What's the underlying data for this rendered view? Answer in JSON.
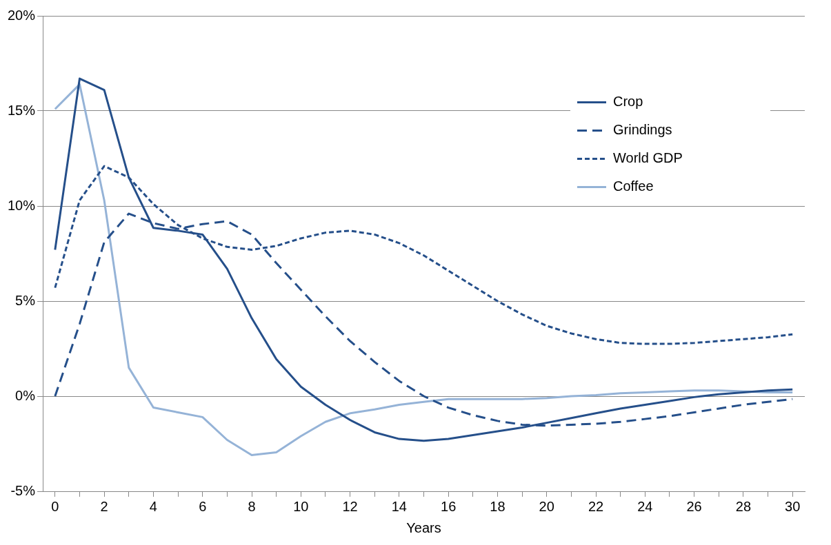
{
  "chart_data": {
    "type": "line",
    "xlabel": "Years",
    "x": [
      0,
      1,
      2,
      3,
      4,
      5,
      6,
      7,
      8,
      9,
      10,
      11,
      12,
      13,
      14,
      15,
      16,
      17,
      18,
      19,
      20,
      21,
      22,
      23,
      24,
      25,
      26,
      27,
      28,
      29,
      30
    ],
    "series": [
      {
        "name": "Crop",
        "color": "#254f8a",
        "line_style": "solid",
        "values": [
          7.7,
          16.7,
          16.1,
          11.5,
          8.85,
          8.7,
          8.5,
          6.7,
          4.1,
          1.95,
          0.5,
          -0.45,
          -1.25,
          -1.9,
          -2.25,
          -2.35,
          -2.25,
          -2.05,
          -1.85,
          -1.65,
          -1.4,
          -1.15,
          -0.9,
          -0.65,
          -0.45,
          -0.25,
          -0.05,
          0.1,
          0.2,
          0.3,
          0.35
        ]
      },
      {
        "name": "Grindings",
        "color": "#254f8a",
        "line_style": "dashed",
        "values": [
          0,
          3.8,
          8.1,
          9.6,
          9.1,
          8.8,
          9.05,
          9.2,
          8.5,
          7.0,
          5.6,
          4.2,
          2.9,
          1.8,
          0.8,
          0.0,
          -0.6,
          -1.0,
          -1.3,
          -1.5,
          -1.55,
          -1.5,
          -1.45,
          -1.35,
          -1.2,
          -1.05,
          -0.85,
          -0.65,
          -0.45,
          -0.3,
          -0.15
        ]
      },
      {
        "name": "World GDP",
        "color": "#254f8a",
        "line_style": "dotted",
        "values": [
          5.7,
          10.3,
          12.1,
          11.5,
          10.1,
          9.0,
          8.3,
          7.85,
          7.7,
          7.9,
          8.3,
          8.6,
          8.7,
          8.5,
          8.05,
          7.4,
          6.6,
          5.8,
          5.0,
          4.3,
          3.7,
          3.3,
          3.0,
          2.8,
          2.75,
          2.75,
          2.8,
          2.9,
          3.0,
          3.1,
          3.25
        ]
      },
      {
        "name": "Coffee",
        "color": "#95b3d7",
        "line_style": "solid",
        "values": [
          15.1,
          16.4,
          10.3,
          1.5,
          -0.6,
          -0.85,
          -1.1,
          -2.3,
          -3.1,
          -2.95,
          -2.1,
          -1.35,
          -0.9,
          -0.7,
          -0.45,
          -0.3,
          -0.15,
          -0.15,
          -0.15,
          -0.15,
          -0.1,
          0.0,
          0.05,
          0.15,
          0.2,
          0.25,
          0.3,
          0.3,
          0.25,
          0.2,
          0.2
        ]
      }
    ],
    "xlim": [
      -0.5,
      30.5
    ],
    "xticks": [
      0,
      {
        "value": 1,
        "label": null
      },
      2,
      {
        "value": 3,
        "label": null
      },
      4,
      {
        "value": 5,
        "label": null
      },
      6,
      {
        "value": 7,
        "label": null
      },
      8,
      {
        "value": 9,
        "label": null
      },
      10,
      {
        "value": 11,
        "label": null
      },
      12,
      {
        "value": 13,
        "label": null
      },
      14,
      {
        "value": 15,
        "label": null
      },
      16,
      {
        "value": 17,
        "label": null
      },
      18,
      {
        "value": 19,
        "label": null
      },
      20,
      {
        "value": 21,
        "label": null
      },
      22,
      {
        "value": 23,
        "label": null
      },
      24,
      {
        "value": 25,
        "label": null
      },
      26,
      {
        "value": 27,
        "label": null
      },
      28,
      {
        "value": 29,
        "label": null
      },
      30
    ],
    "ylim": [
      -5,
      20
    ],
    "yticks": [
      {
        "value": -5,
        "label": "-5%"
      },
      {
        "value": 0,
        "label": "0%"
      },
      {
        "value": 5,
        "label": "5%"
      },
      {
        "value": 10,
        "label": "10%"
      },
      {
        "value": 15,
        "label": "15%"
      },
      {
        "value": 20,
        "label": "20%"
      }
    ],
    "grid": "y",
    "legend": "top right",
    "marker": "none"
  }
}
